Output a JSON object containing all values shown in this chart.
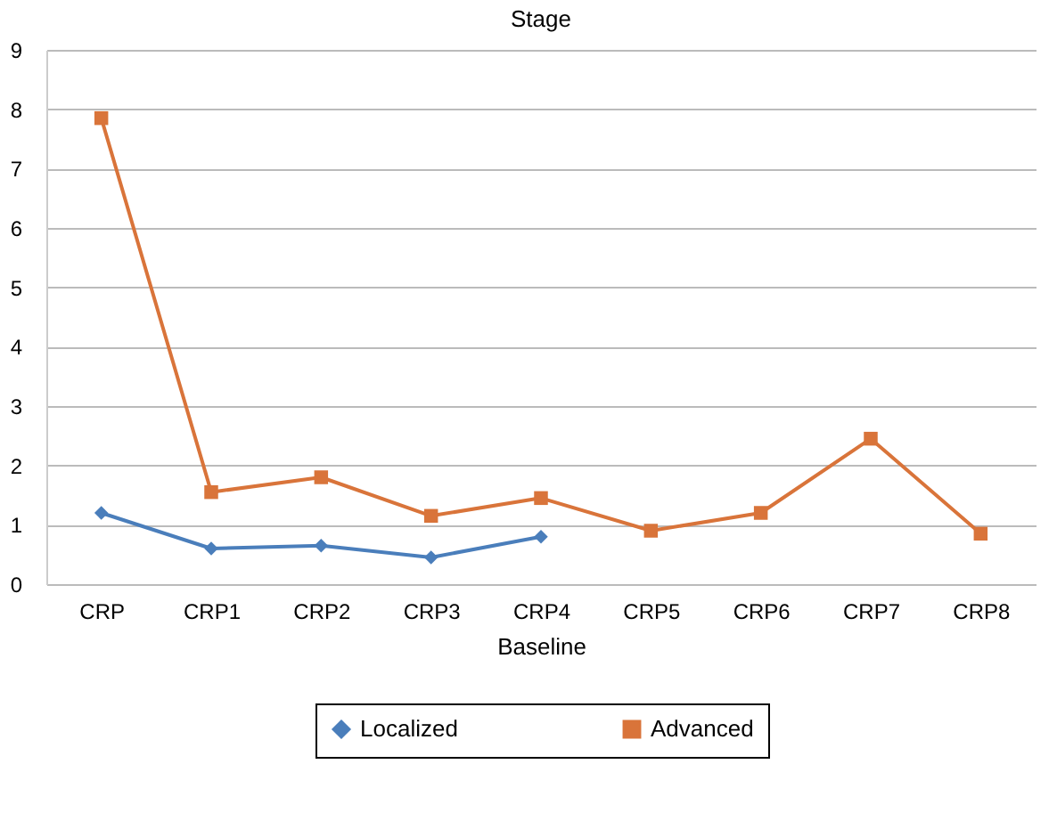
{
  "chart_data": {
    "type": "line",
    "title": "Stage",
    "xlabel": "Baseline",
    "categories": [
      "CRP",
      "CRP1",
      "CRP2",
      "CRP3",
      "CRP4",
      "CRP5",
      "CRP6",
      "CRP7",
      "CRP8"
    ],
    "series": [
      {
        "name": "Localized",
        "color": "#4a7ebb",
        "marker": "diamond",
        "values": [
          1.2,
          0.6,
          0.65,
          0.45,
          0.8,
          null,
          null,
          null,
          null
        ]
      },
      {
        "name": "Advanced",
        "color": "#d9743a",
        "marker": "square",
        "values": [
          7.85,
          1.55,
          1.8,
          1.15,
          1.45,
          0.9,
          1.2,
          2.45,
          0.85
        ]
      }
    ],
    "ylim": [
      0,
      9
    ],
    "yticks": [
      0,
      1,
      2,
      3,
      4,
      5,
      6,
      7,
      8,
      9
    ],
    "grid": "y",
    "legend": "bottom"
  }
}
